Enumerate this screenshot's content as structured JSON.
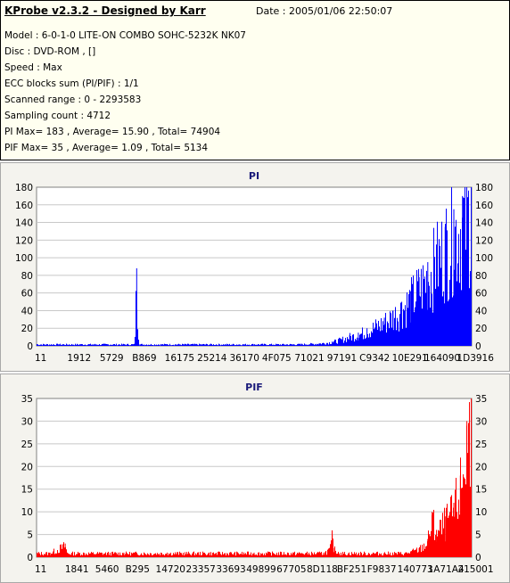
{
  "header": {
    "app_title": "KProbe v2.3.2 - Designed by Karr",
    "date": "Date : 2005/01/06 22:50:07",
    "lines": [
      "Model : 6-0-1-0 LITE-ON COMBO SOHC-5232K NK07",
      "Disc : DVD-ROM ,  []",
      "Speed : Max",
      "ECC blocks sum (PI/PIF) : 1/1",
      "Scanned range : 0 - 2293583",
      "Sampling count : 4712",
      "PI Max= 183 , Average= 15.90 , Total= 74904",
      "PIF Max= 35 , Average= 1.09 , Total= 5134"
    ]
  },
  "chart_data": [
    {
      "type": "bar",
      "title": "PI",
      "color": "#0000ff",
      "ylim": [
        0,
        180
      ],
      "yticks": [
        0,
        20,
        40,
        60,
        80,
        100,
        120,
        140,
        160,
        180
      ],
      "xtick_labels": [
        "11",
        "1912",
        "5729",
        "B869",
        "16175",
        "25214",
        "36170",
        "4F075",
        "71021",
        "97191",
        "C9342",
        "10E291",
        "164090",
        "1D3916"
      ],
      "x_range": [
        0,
        1
      ],
      "points": [
        [
          0,
          2
        ],
        [
          0.05,
          2
        ],
        [
          0.1,
          2
        ],
        [
          0.15,
          2
        ],
        [
          0.2,
          2
        ],
        [
          0.225,
          2
        ],
        [
          0.2296,
          88
        ],
        [
          0.235,
          2
        ],
        [
          0.3,
          2
        ],
        [
          0.4,
          2
        ],
        [
          0.5,
          2
        ],
        [
          0.6,
          2
        ],
        [
          0.65,
          3
        ],
        [
          0.68,
          5
        ],
        [
          0.7,
          8
        ],
        [
          0.72,
          12
        ],
        [
          0.74,
          15
        ],
        [
          0.76,
          20
        ],
        [
          0.78,
          26
        ],
        [
          0.8,
          32
        ],
        [
          0.82,
          40
        ],
        [
          0.84,
          50
        ],
        [
          0.86,
          62
        ],
        [
          0.88,
          78
        ],
        [
          0.9,
          95
        ],
        [
          0.92,
          115
        ],
        [
          0.94,
          135
        ],
        [
          0.96,
          155
        ],
        [
          0.98,
          170
        ],
        [
          1.0,
          183
        ]
      ]
    },
    {
      "type": "bar",
      "title": "PIF",
      "color": "#ff0000",
      "ylim": [
        0,
        35
      ],
      "yticks": [
        0,
        5,
        10,
        15,
        20,
        25,
        30,
        35
      ],
      "xtick_labels": [
        "11",
        "1841",
        "5460",
        "B295",
        "14720",
        "23357",
        "33693",
        "49899",
        "67705",
        "8D118",
        "BF251",
        "F9837",
        "140773",
        "1A71A4",
        "215001"
      ],
      "x_range": [
        0,
        1
      ],
      "points": [
        [
          0,
          1
        ],
        [
          0.03,
          1
        ],
        [
          0.065,
          3
        ],
        [
          0.07,
          1
        ],
        [
          0.2,
          1
        ],
        [
          0.3,
          1
        ],
        [
          0.4,
          1
        ],
        [
          0.5,
          1
        ],
        [
          0.6,
          1
        ],
        [
          0.66,
          1
        ],
        [
          0.675,
          2
        ],
        [
          0.68,
          5
        ],
        [
          0.685,
          2
        ],
        [
          0.7,
          1
        ],
        [
          0.8,
          1
        ],
        [
          0.85,
          1
        ],
        [
          0.88,
          2
        ],
        [
          0.9,
          4
        ],
        [
          0.91,
          10
        ],
        [
          0.92,
          6
        ],
        [
          0.94,
          9
        ],
        [
          0.96,
          12
        ],
        [
          0.975,
          18
        ],
        [
          0.99,
          30
        ],
        [
          1.0,
          35
        ]
      ]
    }
  ]
}
